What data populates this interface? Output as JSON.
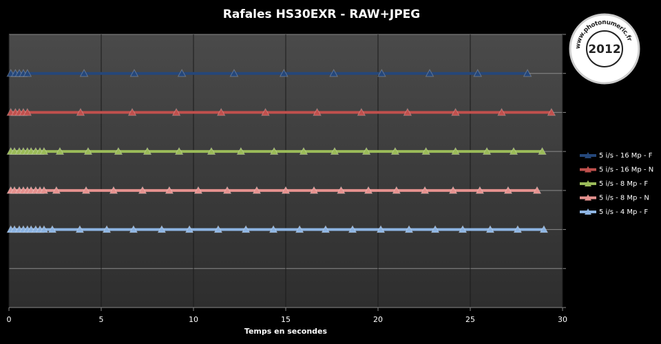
{
  "chart_data": {
    "type": "line",
    "title": "Rafales HS30EXR - RAW+JPEG",
    "x_label": "Temps en secondes",
    "xlim": [
      0,
      30
    ],
    "xticks": [
      0,
      5,
      10,
      15,
      20,
      25,
      30
    ],
    "ylim": [
      0,
      7
    ],
    "yticks": [
      0,
      1,
      2,
      3,
      4,
      5,
      6,
      7
    ],
    "ytick_labels": false,
    "grid": true,
    "legend": "right",
    "marker": "triangle",
    "watermark": {
      "text": "www.photonumeric.fr",
      "year": "2012"
    },
    "series": [
      {
        "name": "5 i/s - 16 Mp - F",
        "color": "#25477a",
        "x": [
          0.1,
          0.35,
          0.56,
          0.78,
          1.0,
          4.07,
          6.79,
          9.37,
          12.2,
          14.9,
          17.6,
          20.2,
          22.8,
          25.4,
          28.1
        ],
        "values": [
          6,
          6,
          6,
          6,
          6,
          6,
          6,
          6,
          6,
          6,
          6,
          6,
          6,
          6,
          6
        ]
      },
      {
        "name": "5 i/s - 16 Mp - N",
        "color": "#c0504d",
        "x": [
          0.1,
          0.35,
          0.56,
          0.78,
          1.0,
          3.88,
          6.68,
          9.07,
          11.5,
          13.9,
          16.7,
          19.1,
          21.6,
          24.2,
          26.7,
          29.4
        ],
        "values": [
          5,
          5,
          5,
          5,
          5,
          5,
          5,
          5,
          5,
          5,
          5,
          5,
          5,
          5,
          5,
          5
        ]
      },
      {
        "name": "5 i/s - 8 Mp - F",
        "color": "#9bbb59",
        "x": [
          0.1,
          0.3,
          0.56,
          0.78,
          1.0,
          1.2,
          1.45,
          1.68,
          1.9,
          2.76,
          4.29,
          5.93,
          7.5,
          9.22,
          10.97,
          12.57,
          14.37,
          15.97,
          17.65,
          19.37,
          20.93,
          22.6,
          24.2,
          25.9,
          27.35,
          28.9
        ],
        "values": [
          4,
          4,
          4,
          4,
          4,
          4,
          4,
          4,
          4,
          4,
          4,
          4,
          4,
          4,
          4,
          4,
          4,
          4,
          4,
          4,
          4,
          4,
          4,
          4,
          4,
          4
        ]
      },
      {
        "name": "5 i/s - 8 Mp - N",
        "color": "#e6928f",
        "x": [
          0.1,
          0.3,
          0.56,
          0.78,
          1.0,
          1.2,
          1.45,
          1.68,
          1.9,
          2.57,
          4.18,
          5.67,
          7.24,
          8.69,
          10.26,
          11.83,
          13.43,
          15.0,
          16.53,
          18.0,
          19.48,
          21.0,
          22.54,
          24.07,
          25.52,
          27.05,
          28.62
        ],
        "values": [
          3,
          3,
          3,
          3,
          3,
          3,
          3,
          3,
          3,
          3,
          3,
          3,
          3,
          3,
          3,
          3,
          3,
          3,
          3,
          3,
          3,
          3,
          3,
          3,
          3,
          3,
          3
        ]
      },
      {
        "name": "5 i/s - 4 Mp - F",
        "color": "#8db4e2",
        "x": [
          0.1,
          0.3,
          0.56,
          0.78,
          1.0,
          1.2,
          1.45,
          1.68,
          1.9,
          2.35,
          3.84,
          5.3,
          6.75,
          8.28,
          9.78,
          11.34,
          12.84,
          14.33,
          15.75,
          17.16,
          18.62,
          20.15,
          21.68,
          23.1,
          24.59,
          26.08,
          27.57,
          28.99
        ],
        "values": [
          2,
          2,
          2,
          2,
          2,
          2,
          2,
          2,
          2,
          2,
          2,
          2,
          2,
          2,
          2,
          2,
          2,
          2,
          2,
          2,
          2,
          2,
          2,
          2,
          2,
          2,
          2,
          2
        ]
      }
    ]
  }
}
